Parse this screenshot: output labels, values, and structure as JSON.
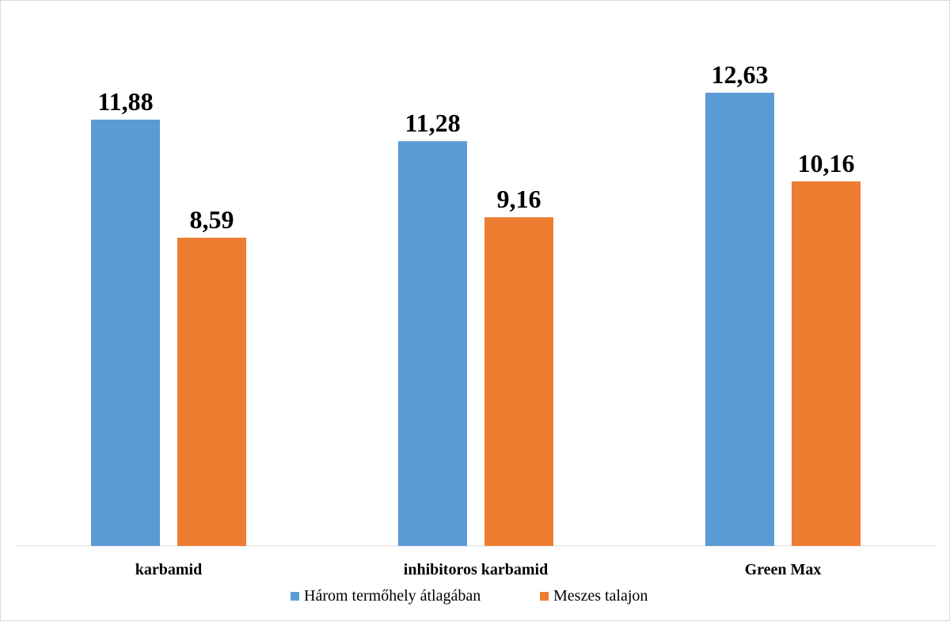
{
  "chart_data": {
    "type": "bar",
    "categories": [
      "karbamid",
      "inhibitoros karbamid",
      "Green Max"
    ],
    "series": [
      {
        "name": "Három termőhely átlagában",
        "values": [
          11.88,
          11.28,
          12.63
        ],
        "labels": [
          "11,88",
          "11,28",
          "12,63"
        ],
        "color": "#5b9bd5"
      },
      {
        "name": "Meszes talajon",
        "values": [
          8.59,
          9.16,
          10.16
        ],
        "labels": [
          "8,59",
          "9,16",
          "10,16"
        ],
        "color": "#ed7d31"
      }
    ],
    "ylim": [
      0,
      14
    ],
    "grid": false,
    "legend_position": "bottom",
    "axis_color": "#d9d9d9"
  }
}
